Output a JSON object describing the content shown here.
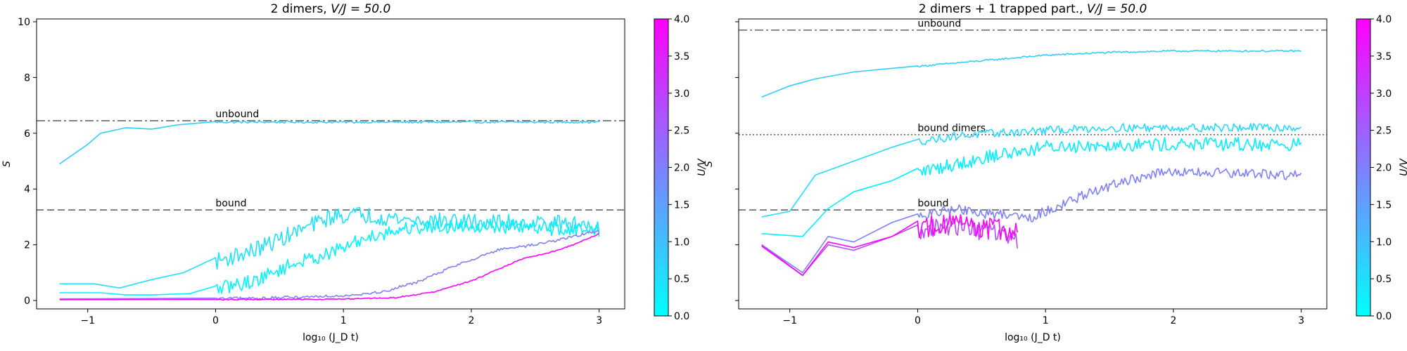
{
  "chart_data": [
    {
      "type": "line",
      "title_text": "2 dimers, ",
      "title_math": "V/J = 50.0",
      "xlabel": "log₁₀ (J_D t)",
      "ylabel": "S",
      "xlim": [
        -1.4,
        3.2
      ],
      "ylim": [
        -0.3,
        10.1
      ],
      "xticks": [
        -1,
        0,
        1,
        2,
        3
      ],
      "yticks": [
        0,
        2,
        4,
        6,
        8,
        10
      ],
      "grid": false,
      "reference_lines": [
        {
          "label": "unbound",
          "y": 6.45,
          "style": "dashdot",
          "color": "#666666",
          "label_x": 0.0
        },
        {
          "label": "bound",
          "y": 3.25,
          "style": "dashed",
          "color": "#666666",
          "label_x": 0.0
        }
      ],
      "series": [
        {
          "U_over_V": 1.0,
          "color": "#33ccff",
          "noise": 0.04,
          "points": [
            [
              -1.22,
              4.9
            ],
            [
              -1.0,
              5.6
            ],
            [
              -0.9,
              6.0
            ],
            [
              -0.7,
              6.2
            ],
            [
              -0.5,
              6.15
            ],
            [
              -0.3,
              6.3
            ],
            [
              0.0,
              6.4
            ],
            [
              0.5,
              6.4
            ],
            [
              1.0,
              6.4
            ],
            [
              2.0,
              6.4
            ],
            [
              3.0,
              6.4
            ]
          ]
        },
        {
          "U_over_V": 0.5,
          "color": "#1ee1ff",
          "noise": 0.3,
          "points": [
            [
              -1.22,
              0.6
            ],
            [
              -0.95,
              0.6
            ],
            [
              -0.75,
              0.45
            ],
            [
              -0.5,
              0.75
            ],
            [
              -0.25,
              1.0
            ],
            [
              0.0,
              1.4
            ],
            [
              0.3,
              1.8
            ],
            [
              0.6,
              2.4
            ],
            [
              0.9,
              3.0
            ],
            [
              1.1,
              3.1
            ],
            [
              1.5,
              2.9
            ],
            [
              2.0,
              2.8
            ],
            [
              2.5,
              2.8
            ],
            [
              3.0,
              2.7
            ]
          ]
        },
        {
          "U_over_V": 0.2,
          "color": "#00f5ff",
          "noise": 0.25,
          "points": [
            [
              -1.22,
              0.28
            ],
            [
              -0.9,
              0.28
            ],
            [
              -0.7,
              0.2
            ],
            [
              -0.5,
              0.2
            ],
            [
              -0.2,
              0.25
            ],
            [
              0.0,
              0.4
            ],
            [
              0.3,
              0.7
            ],
            [
              0.6,
              1.3
            ],
            [
              0.9,
              1.7
            ],
            [
              1.2,
              2.3
            ],
            [
              1.5,
              2.6
            ],
            [
              2.0,
              2.7
            ],
            [
              2.5,
              2.6
            ],
            [
              3.0,
              2.5
            ]
          ]
        },
        {
          "U_over_V": 2.0,
          "color": "#8080ff",
          "noise": 0.05,
          "points": [
            [
              -1.22,
              0.06
            ],
            [
              0.0,
              0.06
            ],
            [
              0.5,
              0.1
            ],
            [
              1.0,
              0.18
            ],
            [
              1.3,
              0.3
            ],
            [
              1.6,
              0.7
            ],
            [
              1.9,
              1.3
            ],
            [
              2.2,
              1.8
            ],
            [
              2.5,
              2.0
            ],
            [
              2.8,
              2.3
            ],
            [
              3.0,
              2.5
            ]
          ]
        },
        {
          "U_over_V": 3.5,
          "color": "#ff00ff",
          "noise": 0.02,
          "points": [
            [
              -1.22,
              0.03
            ],
            [
              0.0,
              0.03
            ],
            [
              1.0,
              0.05
            ],
            [
              1.4,
              0.1
            ],
            [
              1.7,
              0.3
            ],
            [
              2.0,
              0.7
            ],
            [
              2.2,
              1.1
            ],
            [
              2.4,
              1.5
            ],
            [
              2.6,
              1.7
            ],
            [
              2.8,
              2.0
            ],
            [
              3.0,
              2.4
            ]
          ]
        }
      ]
    },
    {
      "type": "line",
      "title_text": "2 dimers + 1 trapped part., ",
      "title_math": "V/J = 50.0",
      "xlabel": "log₁₀ (J_D t)",
      "ylabel": "S",
      "xlim": [
        -1.4,
        3.2
      ],
      "ylim": [
        -0.3,
        10.1
      ],
      "xticks": [
        -1,
        0,
        1,
        2,
        3
      ],
      "yticks": [],
      "grid": false,
      "reference_lines": [
        {
          "label": "unbound",
          "y": 9.7,
          "style": "dashdot",
          "color": "#666666",
          "label_x": 0.0
        },
        {
          "label": "bound dimers",
          "y": 5.95,
          "style": "dotted",
          "color": "#666666",
          "label_x": 0.0
        },
        {
          "label": "bound",
          "y": 3.25,
          "style": "dashed",
          "color": "#666666",
          "label_x": 0.0
        }
      ],
      "series": [
        {
          "U_over_V": 1.0,
          "color": "#33ccff",
          "noise": 0.03,
          "points": [
            [
              -1.22,
              7.3
            ],
            [
              -1.0,
              7.7
            ],
            [
              -0.8,
              7.95
            ],
            [
              -0.5,
              8.2
            ],
            [
              0.0,
              8.4
            ],
            [
              0.5,
              8.6
            ],
            [
              1.0,
              8.8
            ],
            [
              1.5,
              8.9
            ],
            [
              2.0,
              8.95
            ],
            [
              3.0,
              8.95
            ]
          ]
        },
        {
          "U_over_V": 0.7,
          "color": "#26d9ff",
          "noise": 0.15,
          "points": [
            [
              -1.22,
              3.0
            ],
            [
              -1.0,
              3.2
            ],
            [
              -0.8,
              4.5
            ],
            [
              -0.5,
              5.0
            ],
            [
              -0.2,
              5.5
            ],
            [
              0.0,
              5.7
            ],
            [
              0.3,
              5.9
            ],
            [
              0.6,
              6.0
            ],
            [
              1.0,
              6.1
            ],
            [
              1.5,
              6.2
            ],
            [
              2.0,
              6.2
            ],
            [
              3.0,
              6.2
            ]
          ]
        },
        {
          "U_over_V": 0.3,
          "color": "#00f0ff",
          "noise": 0.25,
          "points": [
            [
              -1.22,
              2.4
            ],
            [
              -0.9,
              2.3
            ],
            [
              -0.7,
              3.3
            ],
            [
              -0.5,
              3.9
            ],
            [
              -0.2,
              4.3
            ],
            [
              0.0,
              4.6
            ],
            [
              0.3,
              4.9
            ],
            [
              0.6,
              5.2
            ],
            [
              1.0,
              5.5
            ],
            [
              1.5,
              5.6
            ],
            [
              2.0,
              5.6
            ],
            [
              3.0,
              5.6
            ]
          ]
        },
        {
          "U_over_V": 2.0,
          "color": "#8080ff",
          "noise": 0.18,
          "points": [
            [
              -1.22,
              2.0
            ],
            [
              -0.9,
              1.0
            ],
            [
              -0.7,
              2.3
            ],
            [
              -0.5,
              2.1
            ],
            [
              -0.2,
              2.8
            ],
            [
              0.0,
              3.0
            ],
            [
              0.3,
              3.3
            ],
            [
              0.5,
              3.1
            ],
            [
              0.7,
              3.1
            ],
            [
              0.9,
              3.0
            ],
            [
              1.2,
              3.6
            ],
            [
              1.5,
              4.1
            ],
            [
              1.8,
              4.5
            ],
            [
              2.0,
              4.6
            ],
            [
              3.0,
              4.5
            ]
          ]
        },
        {
          "U_over_V": 2.8,
          "color": "#b34cff",
          "noise": 0.35,
          "points": [
            [
              -1.22,
              2.0
            ],
            [
              -0.9,
              0.9
            ],
            [
              -0.7,
              2.0
            ],
            [
              -0.5,
              1.8
            ],
            [
              -0.2,
              2.3
            ],
            [
              0.0,
              2.5
            ],
            [
              0.3,
              2.7
            ],
            [
              0.5,
              2.5
            ],
            [
              0.78,
              2.2
            ]
          ]
        },
        {
          "U_over_V": 3.5,
          "color": "#ff00ff",
          "noise": 0.4,
          "points": [
            [
              -1.22,
              1.95
            ],
            [
              -0.9,
              0.9
            ],
            [
              -0.7,
              2.1
            ],
            [
              -0.5,
              1.9
            ],
            [
              -0.2,
              2.3
            ],
            [
              0.0,
              2.6
            ],
            [
              0.3,
              2.8
            ],
            [
              0.5,
              2.6
            ],
            [
              0.78,
              2.5
            ]
          ]
        }
      ]
    }
  ],
  "colorbars": [
    {
      "label": "U/V",
      "range": [
        0.0,
        4.0
      ],
      "colors": [
        "#00ffff",
        "#ff00ff"
      ],
      "ticks": [
        "0.0",
        "0.5",
        "1.0",
        "1.5",
        "2.0",
        "2.5",
        "3.0",
        "3.5",
        "4.0"
      ]
    },
    {
      "label": "U/V",
      "range": [
        0.0,
        4.0
      ],
      "colors": [
        "#00ffff",
        "#ff00ff"
      ],
      "ticks": [
        "0.0",
        "0.5",
        "1.0",
        "1.5",
        "2.0",
        "2.5",
        "3.0",
        "3.5",
        "4.0"
      ]
    }
  ]
}
